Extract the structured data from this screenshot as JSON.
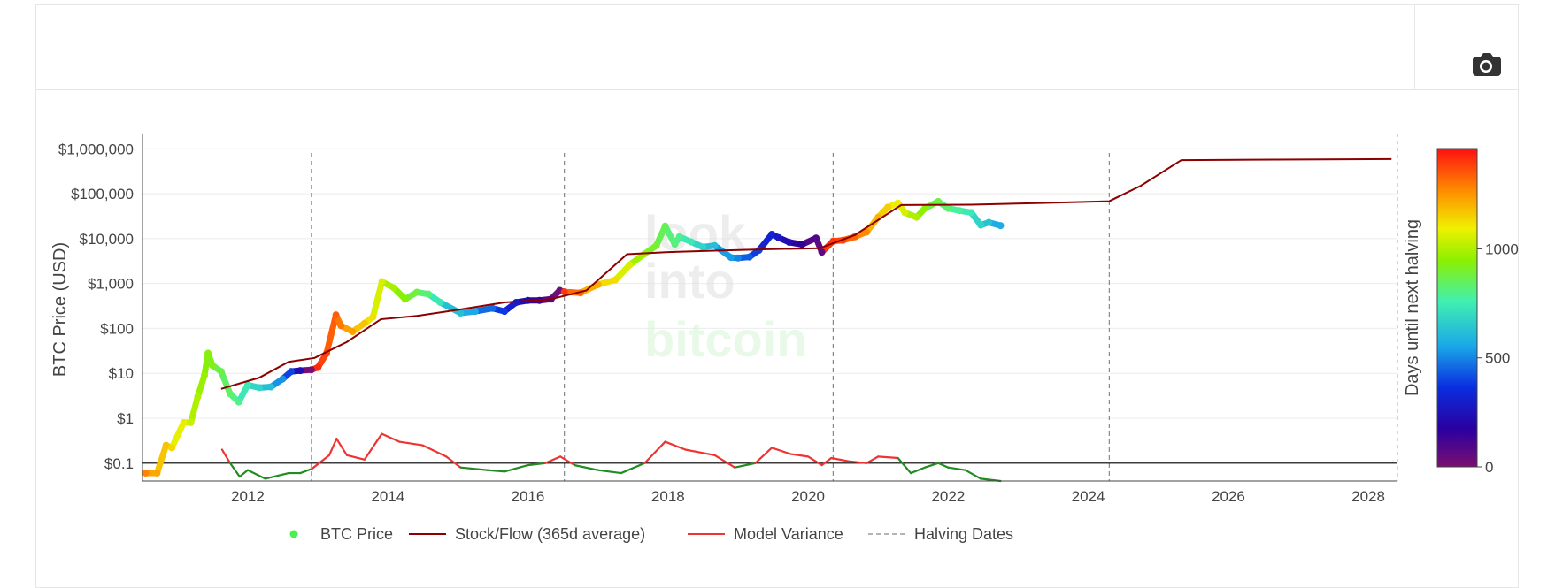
{
  "toolbar": {
    "camera_icon": "camera-icon"
  },
  "watermark": {
    "line1": "look",
    "line2": "into",
    "line3": "bitcoin"
  },
  "chart_data": {
    "type": "scatter",
    "title": "",
    "xlabel": "",
    "ylabel": "BTC Price (USD)",
    "colorbar_label": "Days until next halving",
    "colorbar_ticks": [
      {
        "value": 0,
        "label": "0"
      },
      {
        "value": 500,
        "label": "500"
      },
      {
        "value": 1000,
        "label": "1000"
      }
    ],
    "colorbar_range": [
      0,
      1460
    ],
    "x_axis": {
      "type": "date",
      "range": [
        "2010-07-01",
        "2028-06-01"
      ],
      "ticks": [
        "2012",
        "2014",
        "2016",
        "2018",
        "2020",
        "2022",
        "2024",
        "2026",
        "2028"
      ]
    },
    "y_axis": {
      "type": "log",
      "range": [
        0.04,
        2000000
      ],
      "ticks": [
        {
          "value": 0.1,
          "label": "$0.1"
        },
        {
          "value": 1,
          "label": "$1"
        },
        {
          "value": 10,
          "label": "$10"
        },
        {
          "value": 100,
          "label": "$100"
        },
        {
          "value": 1000,
          "label": "$1,000"
        },
        {
          "value": 10000,
          "label": "$10,000"
        },
        {
          "value": 100000,
          "label": "$100,000"
        },
        {
          "value": 1000000,
          "label": "$1,000,000"
        }
      ]
    },
    "reference_line": {
      "y": 0.1
    },
    "legend": {
      "position": "bottom",
      "items": [
        {
          "name": "BTC Price",
          "symbol": "dot",
          "color": "#4cf04c"
        },
        {
          "name": "Stock/Flow (365d average)",
          "symbol": "line",
          "color": "#8b0000"
        },
        {
          "name": "Model Variance",
          "symbol": "line",
          "color": "#ee3333"
        },
        {
          "name": "Halving Dates",
          "symbol": "dash",
          "color": "#888888"
        }
      ]
    },
    "halving_dates": [
      "2012-11-28",
      "2016-07-09",
      "2020-05-11",
      "2024-04-20"
    ],
    "series": [
      {
        "name": "BTC Price",
        "color_by": "Days until next halving",
        "points": [
          [
            "2010-07-18",
            0.06,
            1280
          ],
          [
            "2010-09-15",
            0.06,
            1220
          ],
          [
            "2010-11-01",
            0.25,
            1170
          ],
          [
            "2010-12-01",
            0.22,
            1140
          ],
          [
            "2011-02-01",
            0.8,
            1080
          ],
          [
            "2011-03-10",
            0.8,
            1040
          ],
          [
            "2011-04-15",
            3.0,
            1000
          ],
          [
            "2011-05-20",
            9.0,
            970
          ],
          [
            "2011-06-08",
            28.0,
            940
          ],
          [
            "2011-07-01",
            15.0,
            920
          ],
          [
            "2011-08-15",
            11.0,
            870
          ],
          [
            "2011-10-01",
            3.5,
            840
          ],
          [
            "2011-11-15",
            2.3,
            800
          ],
          [
            "2012-01-01",
            5.5,
            740
          ],
          [
            "2012-03-01",
            4.8,
            680
          ],
          [
            "2012-05-01",
            5.0,
            620
          ],
          [
            "2012-07-01",
            7.5,
            520
          ],
          [
            "2012-08-15",
            11.0,
            400
          ],
          [
            "2012-10-01",
            11.5,
            230
          ],
          [
            "2012-11-28",
            12.0,
            5
          ],
          [
            "2013-01-01",
            13.5,
            1420
          ],
          [
            "2013-02-15",
            28.0,
            1380
          ],
          [
            "2013-04-05",
            200.0,
            1340
          ],
          [
            "2013-05-01",
            115.0,
            1300
          ],
          [
            "2013-07-01",
            85.0,
            1230
          ],
          [
            "2013-09-01",
            130.0,
            1170
          ],
          [
            "2013-10-15",
            180.0,
            1120
          ],
          [
            "2013-12-01",
            1100.0,
            1060
          ],
          [
            "2014-02-01",
            800.0,
            990
          ],
          [
            "2014-04-01",
            450.0,
            940
          ],
          [
            "2014-06-01",
            640.0,
            880
          ],
          [
            "2014-08-01",
            580.0,
            820
          ],
          [
            "2014-10-01",
            380.0,
            740
          ],
          [
            "2015-01-15",
            220.0,
            620
          ],
          [
            "2015-04-01",
            240.0,
            560
          ],
          [
            "2015-07-01",
            280.0,
            460
          ],
          [
            "2015-09-01",
            240.0,
            380
          ],
          [
            "2015-11-01",
            380.0,
            300
          ],
          [
            "2016-01-01",
            420.0,
            220
          ],
          [
            "2016-03-01",
            420.0,
            140
          ],
          [
            "2016-05-01",
            450.0,
            70
          ],
          [
            "2016-06-15",
            700.0,
            25
          ],
          [
            "2016-07-09",
            650.0,
            1400
          ],
          [
            "2016-10-01",
            620.0,
            1320
          ],
          [
            "2017-01-01",
            950.0,
            1210
          ],
          [
            "2017-04-01",
            1200.0,
            1130
          ],
          [
            "2017-06-15",
            2600.0,
            1060
          ],
          [
            "2017-09-01",
            4600.0,
            980
          ],
          [
            "2017-11-01",
            7000.0,
            900
          ],
          [
            "2017-12-17",
            19000.0,
            860
          ],
          [
            "2018-02-05",
            7500.0,
            820
          ],
          [
            "2018-03-01",
            11000.0,
            800
          ],
          [
            "2018-05-01",
            8500.0,
            740
          ],
          [
            "2018-07-01",
            6500.0,
            680
          ],
          [
            "2018-09-01",
            7000.0,
            620
          ],
          [
            "2018-11-25",
            3800.0,
            540
          ],
          [
            "2019-01-01",
            3700.0,
            500
          ],
          [
            "2019-03-01",
            3900.0,
            440
          ],
          [
            "2019-04-20",
            5500.0,
            390
          ],
          [
            "2019-06-26",
            12500.0,
            320
          ],
          [
            "2019-08-01",
            10500.0,
            280
          ],
          [
            "2019-09-25",
            8300.0,
            230
          ],
          [
            "2019-12-01",
            7400.0,
            160
          ],
          [
            "2020-02-12",
            10300.0,
            90
          ],
          [
            "2020-03-13",
            5000.0,
            60
          ],
          [
            "2020-05-11",
            8800.0,
            1400
          ],
          [
            "2020-07-01",
            9200.0,
            1380
          ],
          [
            "2020-09-01",
            11000.0,
            1330
          ],
          [
            "2020-11-01",
            14000.0,
            1270
          ],
          [
            "2021-01-01",
            30000.0,
            1200
          ],
          [
            "2021-02-20",
            50000.0,
            1150
          ],
          [
            "2021-04-14",
            62000.0,
            1100
          ],
          [
            "2021-05-20",
            38000.0,
            1060
          ],
          [
            "2021-07-20",
            30000.0,
            1000
          ],
          [
            "2021-09-01",
            47000.0,
            950
          ],
          [
            "2021-11-10",
            67000.0,
            880
          ],
          [
            "2022-01-01",
            47000.0,
            830
          ],
          [
            "2022-03-01",
            42000.0,
            780
          ],
          [
            "2022-05-01",
            38000.0,
            740
          ],
          [
            "2022-06-20",
            20000.0,
            680
          ],
          [
            "2022-08-01",
            23000.0,
            630
          ],
          [
            "2022-10-01",
            19500.0,
            570
          ]
        ]
      },
      {
        "name": "Stock/Flow (365d average)",
        "color": "#8b0000",
        "points": [
          [
            "2011-08-15",
            4.5
          ],
          [
            "2012-03-01",
            8.0
          ],
          [
            "2012-08-01",
            18.0
          ],
          [
            "2012-12-15",
            22.0
          ],
          [
            "2013-06-01",
            50.0
          ],
          [
            "2013-11-25",
            160.0
          ],
          [
            "2014-06-01",
            190.0
          ],
          [
            "2015-01-01",
            260.0
          ],
          [
            "2015-09-01",
            380.0
          ],
          [
            "2016-05-01",
            450.0
          ],
          [
            "2016-11-01",
            700.0
          ],
          [
            "2017-06-01",
            4500.0
          ],
          [
            "2018-01-01",
            5000.0
          ],
          [
            "2018-09-01",
            5400.0
          ],
          [
            "2019-06-01",
            5800.0
          ],
          [
            "2020-03-01",
            6100.0
          ],
          [
            "2020-09-01",
            12000.0
          ],
          [
            "2021-05-01",
            56000.0
          ],
          [
            "2022-05-01",
            57000.0
          ],
          [
            "2023-05-01",
            62000.0
          ],
          [
            "2024-04-20",
            68000.0
          ],
          [
            "2024-10-01",
            150000.0
          ],
          [
            "2025-05-01",
            560000.0
          ],
          [
            "2026-05-01",
            570000.0
          ],
          [
            "2028-05-01",
            590000.0
          ]
        ]
      },
      {
        "name": "Model Variance",
        "color_above": "#ee3333",
        "color_below": "#228b22",
        "points": [
          [
            "2011-08-20",
            0.2
          ],
          [
            "2011-10-01",
            0.1
          ],
          [
            "2011-11-20",
            0.05
          ],
          [
            "2012-01-01",
            0.07
          ],
          [
            "2012-04-01",
            0.045
          ],
          [
            "2012-08-01",
            0.06
          ],
          [
            "2012-10-01",
            0.06
          ],
          [
            "2012-12-01",
            0.075
          ],
          [
            "2013-03-01",
            0.15
          ],
          [
            "2013-04-08",
            0.35
          ],
          [
            "2013-06-01",
            0.15
          ],
          [
            "2013-09-01",
            0.12
          ],
          [
            "2013-11-30",
            0.45
          ],
          [
            "2014-03-01",
            0.3
          ],
          [
            "2014-07-01",
            0.25
          ],
          [
            "2014-11-01",
            0.14
          ],
          [
            "2015-01-15",
            0.08
          ],
          [
            "2015-06-01",
            0.07
          ],
          [
            "2015-09-01",
            0.065
          ],
          [
            "2016-01-01",
            0.09
          ],
          [
            "2016-04-01",
            0.1
          ],
          [
            "2016-06-18",
            0.14
          ],
          [
            "2016-09-01",
            0.09
          ],
          [
            "2017-01-01",
            0.07
          ],
          [
            "2017-05-01",
            0.06
          ],
          [
            "2017-09-01",
            0.1
          ],
          [
            "2017-12-17",
            0.3
          ],
          [
            "2018-04-01",
            0.2
          ],
          [
            "2018-09-01",
            0.15
          ],
          [
            "2018-12-15",
            0.08
          ],
          [
            "2019-04-01",
            0.1
          ],
          [
            "2019-06-26",
            0.22
          ],
          [
            "2019-10-01",
            0.16
          ],
          [
            "2020-01-01",
            0.14
          ],
          [
            "2020-03-13",
            0.09
          ],
          [
            "2020-05-01",
            0.13
          ],
          [
            "2020-08-01",
            0.11
          ],
          [
            "2020-11-01",
            0.1
          ],
          [
            "2021-01-01",
            0.14
          ],
          [
            "2021-04-14",
            0.13
          ],
          [
            "2021-06-20",
            0.06
          ],
          [
            "2021-09-01",
            0.08
          ],
          [
            "2021-11-10",
            0.1
          ],
          [
            "2022-01-01",
            0.08
          ],
          [
            "2022-04-01",
            0.07
          ],
          [
            "2022-06-20",
            0.045
          ],
          [
            "2022-10-01",
            0.04
          ]
        ]
      }
    ]
  }
}
